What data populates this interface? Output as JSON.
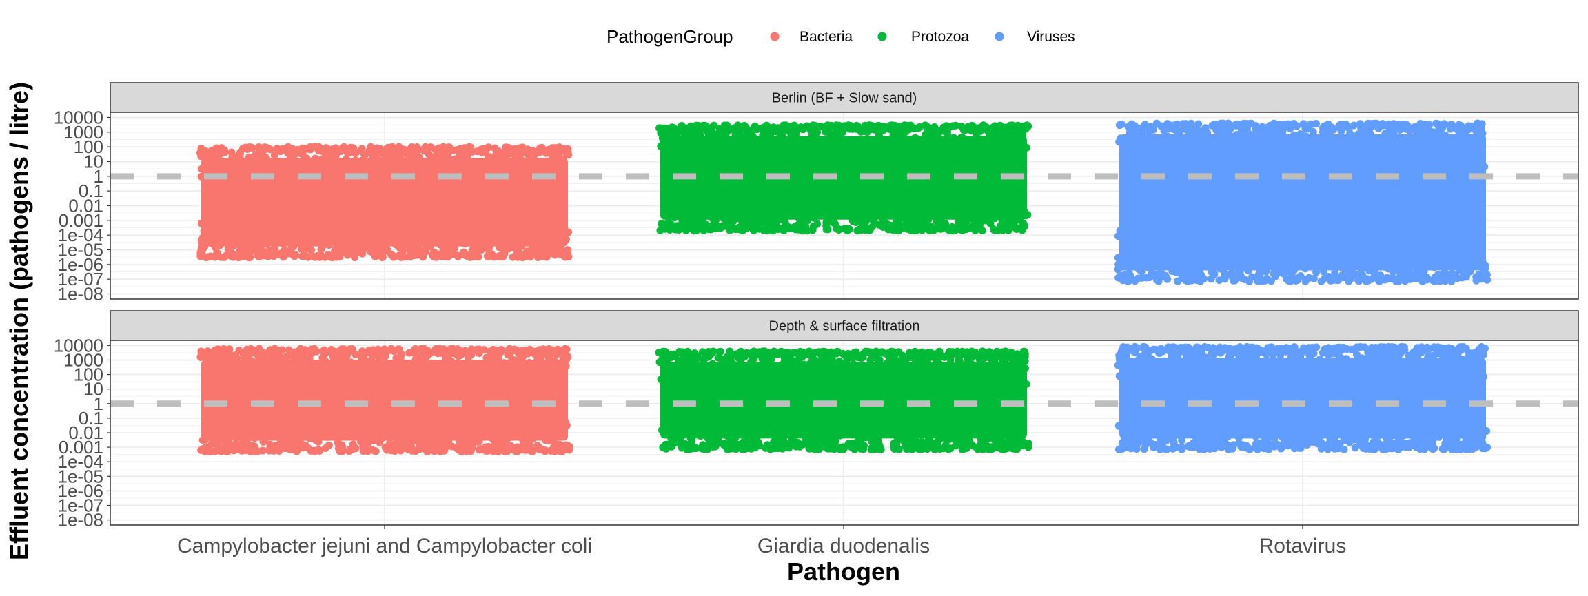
{
  "chart_data": {
    "type": "scatter",
    "xlabel": "Pathogen",
    "ylabel": "Effluent concentration (pathogens / litre)",
    "y_scale": "log10",
    "y_ticks": [
      "10000",
      "1000",
      "100",
      "10",
      "1",
      "0.1",
      "0.01",
      "0.001",
      "1e-04",
      "1e-05",
      "1e-06",
      "1e-07",
      "1e-08"
    ],
    "y_tick_values": [
      10000,
      1000,
      100,
      10,
      1,
      0.1,
      0.01,
      0.001,
      0.0001,
      1e-05,
      1e-06,
      1e-07,
      1e-08
    ],
    "categories": [
      "Campylobacter jejuni and Campylobacter coli",
      "Giardia duodenalis",
      "Rotavirus"
    ],
    "reference_line": {
      "y": 1,
      "style": "dashed",
      "color": "#bebebe"
    },
    "grid": true,
    "legend": {
      "title": "PathogenGroup",
      "position": "top",
      "entries": [
        {
          "name": "Bacteria",
          "color": "#F8766D"
        },
        {
          "name": "Protozoa",
          "color": "#00BA38"
        },
        {
          "name": "Viruses",
          "color": "#619CFF"
        }
      ]
    },
    "facets": [
      {
        "label": "Berlin (BF + Slow sand)",
        "series": [
          {
            "category": "Campylobacter jejuni and Campylobacter coli",
            "group": "Bacteria",
            "ymin": 3e-06,
            "ymax": 100
          },
          {
            "category": "Giardia duodenalis",
            "group": "Protozoa",
            "ymin": 0.0002,
            "ymax": 3000
          },
          {
            "category": "Rotavirus",
            "group": "Viruses",
            "ymin": 7e-08,
            "ymax": 4000
          }
        ]
      },
      {
        "label": "Depth & surface filtration",
        "series": [
          {
            "category": "Campylobacter jejuni and Campylobacter coli",
            "group": "Bacteria",
            "ymin": 0.0005,
            "ymax": 6000
          },
          {
            "category": "Giardia duodenalis",
            "group": "Protozoa",
            "ymin": 0.0007,
            "ymax": 4000
          },
          {
            "category": "Rotavirus",
            "group": "Viruses",
            "ymin": 0.0007,
            "ymax": 8000
          }
        ]
      }
    ]
  }
}
